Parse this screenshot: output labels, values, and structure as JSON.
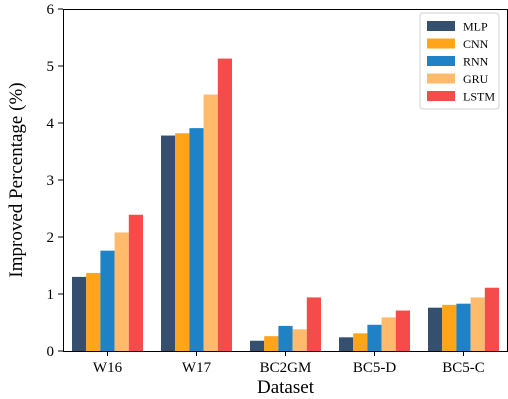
{
  "chart_data": {
    "type": "bar",
    "title": "",
    "xlabel": "Dataset",
    "ylabel": "Improved Percentage (%)",
    "ylim": [
      0,
      6
    ],
    "yticks": [
      "0",
      "1",
      "2",
      "3",
      "4",
      "5",
      "6"
    ],
    "grid": false,
    "legend_position": "top-right",
    "categories": [
      "W16",
      "W17",
      "BC2GM",
      "BC5-D",
      "BC5-C"
    ],
    "series": [
      {
        "name": "MLP",
        "color": "#34506e",
        "values": [
          1.3,
          3.78,
          0.18,
          0.24,
          0.76
        ]
      },
      {
        "name": "CNN",
        "color": "#ffa41b",
        "values": [
          1.37,
          3.82,
          0.26,
          0.31,
          0.81
        ]
      },
      {
        "name": "RNN",
        "color": "#1f82c6",
        "values": [
          1.76,
          3.91,
          0.44,
          0.46,
          0.83
        ]
      },
      {
        "name": "GRU",
        "color": "#ffbb6b",
        "values": [
          2.08,
          4.5,
          0.38,
          0.59,
          0.94
        ]
      },
      {
        "name": "LSTM",
        "color": "#f64b4b",
        "values": [
          2.39,
          5.13,
          0.94,
          0.71,
          1.11
        ]
      }
    ]
  }
}
